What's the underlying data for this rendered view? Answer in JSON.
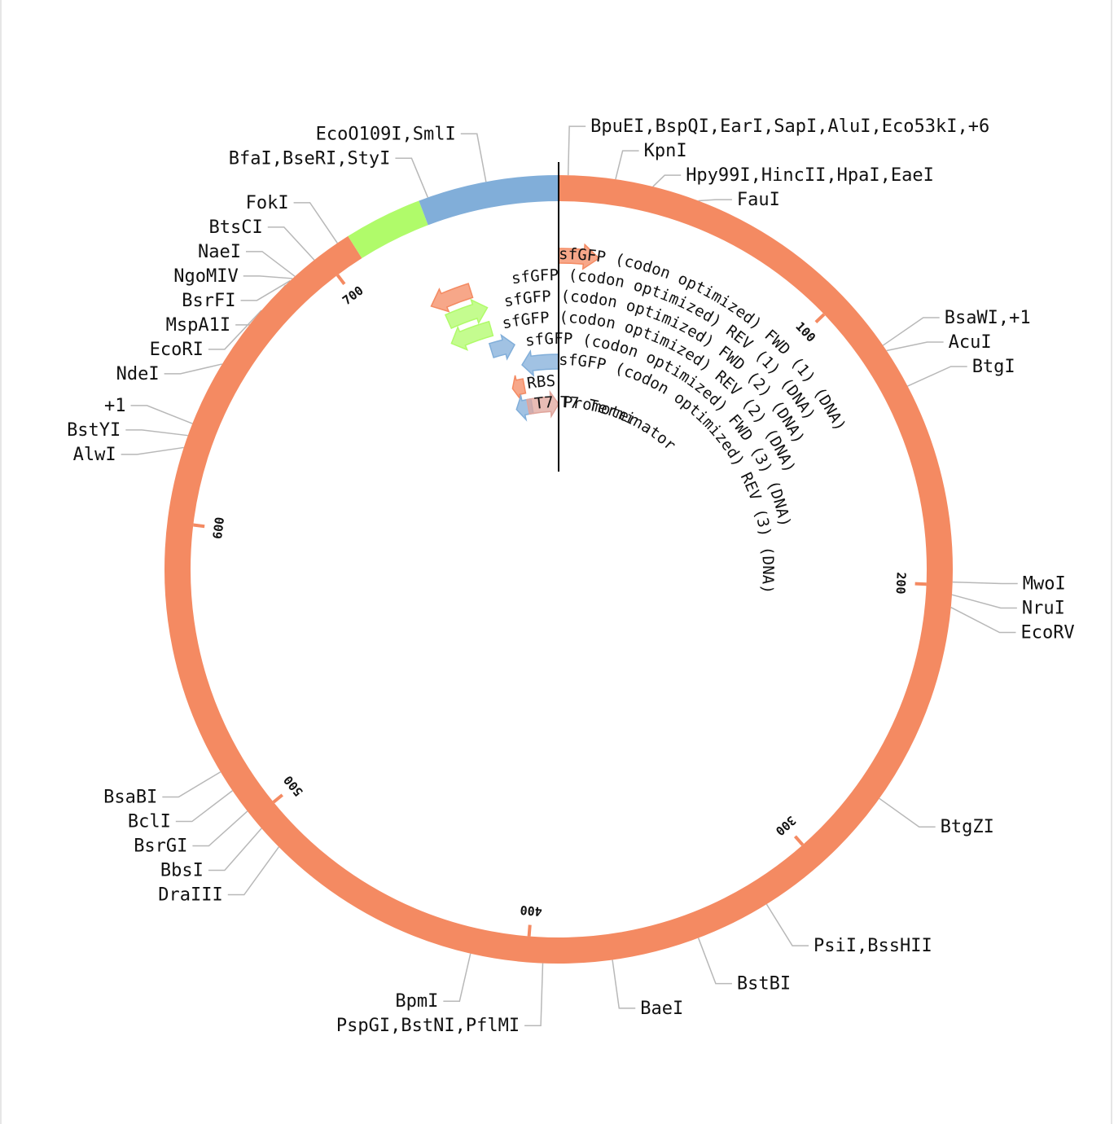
{
  "plasmid": {
    "total_length": 780,
    "colors": {
      "backbone": "#f48a62",
      "green": "#b0fb6a",
      "blue": "#81aed9",
      "tick": "#f48a62"
    }
  },
  "segments": [
    {
      "name": "main",
      "start": 0,
      "end": 710,
      "color": "#f48a62"
    },
    {
      "name": "green",
      "start": 710,
      "end": 735,
      "color": "#b0fb6a"
    },
    {
      "name": "blue",
      "start": 735,
      "end": 780,
      "color": "#81aed9"
    }
  ],
  "ticks": [
    {
      "pos": 100,
      "label": "100"
    },
    {
      "pos": 200,
      "label": "200"
    },
    {
      "pos": 300,
      "label": "300"
    },
    {
      "pos": 400,
      "label": "400"
    },
    {
      "pos": 500,
      "label": "500"
    },
    {
      "pos": 600,
      "label": "600"
    },
    {
      "pos": 700,
      "label": "700"
    }
  ],
  "sites": [
    {
      "text": "BpuEI,BspQI,EarI,SapI,AluI,Eco53kI,+6",
      "pos": 3,
      "side": "right"
    },
    {
      "text": "KpnI",
      "pos": 18,
      "side": "right"
    },
    {
      "text": "Hpy99I,HincII,HpaI,EaeI",
      "pos": 30,
      "side": "right"
    },
    {
      "text": "FauI",
      "pos": 45,
      "side": "right"
    },
    {
      "text": "BsaWI,+1",
      "pos": 120,
      "side": "right"
    },
    {
      "text": "AcuI",
      "pos": 122,
      "side": "right"
    },
    {
      "text": "BtgI",
      "pos": 135,
      "side": "right"
    },
    {
      "text": "MwoI",
      "pos": 199,
      "side": "right"
    },
    {
      "text": "NruI",
      "pos": 203,
      "side": "right"
    },
    {
      "text": "EcoRV",
      "pos": 207,
      "side": "right"
    },
    {
      "text": "BtgZI",
      "pos": 272,
      "side": "right"
    },
    {
      "text": "PsiI,BssHII",
      "pos": 321,
      "side": "right"
    },
    {
      "text": "BstBI",
      "pos": 345,
      "side": "right"
    },
    {
      "text": "BaeI",
      "pos": 373,
      "side": "right"
    },
    {
      "text": "PspGI,BstNI,PflMI",
      "pos": 395,
      "side": "left"
    },
    {
      "text": "BpmI",
      "pos": 418,
      "side": "left"
    },
    {
      "text": "DraIII",
      "pos": 488,
      "side": "left"
    },
    {
      "text": "BbsI",
      "pos": 496,
      "side": "left"
    },
    {
      "text": "BsrGI",
      "pos": 503,
      "side": "left"
    },
    {
      "text": "BclI",
      "pos": 511,
      "side": "left"
    },
    {
      "text": "BsaBI",
      "pos": 518,
      "side": "left"
    },
    {
      "text": "AlwI",
      "pos": 624,
      "side": "left"
    },
    {
      "text": "BstYI",
      "pos": 628,
      "side": "left"
    },
    {
      "text": "+1",
      "pos": 632,
      "side": "left"
    },
    {
      "text": "NdeI",
      "pos": 653,
      "side": "left"
    },
    {
      "text": "EcoRI",
      "pos": 674,
      "side": "left"
    },
    {
      "text": "MspA1I",
      "pos": 685,
      "side": "left"
    },
    {
      "text": "BsrFI",
      "pos": 687,
      "side": "left"
    },
    {
      "text": "NgoMIV",
      "pos": 688,
      "side": "left"
    },
    {
      "text": "NaeI",
      "pos": 689,
      "side": "left"
    },
    {
      "text": "BtsCI",
      "pos": 697,
      "side": "left"
    },
    {
      "text": "FokI",
      "pos": 706,
      "side": "left"
    },
    {
      "text": "BfaI,BseRI,StyI",
      "pos": 738,
      "side": "left"
    },
    {
      "text": "EcoO109I,SmlI",
      "pos": 757,
      "side": "left"
    }
  ],
  "features": [
    {
      "name": "sfGFP (codon optimized) FWD (1) (DNA)",
      "start": 0,
      "end": 16,
      "track": 0,
      "color": "#f48a62",
      "dir": "cw",
      "label_at": 0,
      "label_track": 0
    },
    {
      "name": "sfGFP (codon optimized) REV (1) (DNA)",
      "start": 724,
      "end": 742,
      "track": 1,
      "color": "#f48a62",
      "dir": "ccw",
      "label_at": 760,
      "label_track": 1
    },
    {
      "name": "sfGFP (codon optimized) FWD (2) (DNA)",
      "start": 728,
      "end": 747,
      "track": 2,
      "color": "#b0fb6a",
      "dir": "cw",
      "label_at": 755,
      "label_track": 2
    },
    {
      "name": "sfGFP (codon optimized) REV (2) (DNA)",
      "start": 725,
      "end": 746,
      "track": 3,
      "color": "#b0fb6a",
      "dir": "ccw",
      "label_at": 752,
      "label_track": 3
    },
    {
      "name": "sfGFP (codon optimized) FWD (3) (DNA)",
      "start": 743,
      "end": 756,
      "track": 4,
      "color": "#81aed9",
      "dir": "cw",
      "label_at": 762,
      "label_track": 4
    },
    {
      "name": "sfGFP (codon optimized) REV (3) (DNA)",
      "start": 758,
      "end": 780,
      "track": 5,
      "color": "#81aed9",
      "dir": "ccw",
      "label_at": 0,
      "label_track": 5
    },
    {
      "name": "RBS",
      "start": 749,
      "end": 757,
      "track": 6,
      "color": "#f48a62",
      "dir": "ccw",
      "label_at": 759,
      "label_track": 6
    },
    {
      "name": "T7 Promoter",
      "start": 748,
      "end": 760,
      "track": 7,
      "color": "#81aed9",
      "dir": "ccw",
      "label_at": 762,
      "label_track": 7
    },
    {
      "name": "T7 Terminator",
      "start": 757,
      "end": 780,
      "track": 7,
      "color": "#e0a59c",
      "dir": "cw",
      "label_at": 1,
      "label_track": 7
    }
  ]
}
